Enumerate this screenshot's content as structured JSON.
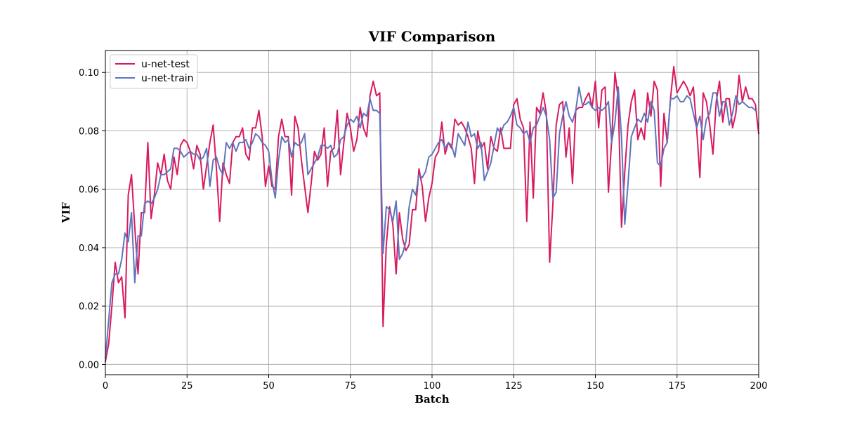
{
  "chart_data": {
    "type": "line",
    "title": "VIF Comparison",
    "xlabel": "Batch",
    "ylabel": "VIF",
    "xlim": [
      0,
      200
    ],
    "ylim": [
      -0.0035,
      0.1075
    ],
    "xticks": [
      0,
      25,
      50,
      75,
      100,
      125,
      150,
      175,
      200
    ],
    "yticks": [
      0.0,
      0.02,
      0.04,
      0.06,
      0.08,
      0.1
    ],
    "ytick_labels": [
      "0.00",
      "0.02",
      "0.04",
      "0.06",
      "0.08",
      "0.10"
    ],
    "grid": true,
    "legend_position": "top-left",
    "series": [
      {
        "name": "u-net-test",
        "color": "#d81b60",
        "values": [
          0.001,
          0.007,
          0.02,
          0.035,
          0.028,
          0.03,
          0.016,
          0.058,
          0.065,
          0.047,
          0.031,
          0.052,
          0.052,
          0.076,
          0.05,
          0.058,
          0.069,
          0.065,
          0.072,
          0.063,
          0.06,
          0.071,
          0.065,
          0.075,
          0.077,
          0.076,
          0.073,
          0.067,
          0.075,
          0.072,
          0.06,
          0.068,
          0.076,
          0.082,
          0.067,
          0.049,
          0.069,
          0.065,
          0.062,
          0.076,
          0.078,
          0.078,
          0.081,
          0.072,
          0.07,
          0.081,
          0.081,
          0.087,
          0.078,
          0.061,
          0.068,
          0.061,
          0.06,
          0.078,
          0.084,
          0.078,
          0.078,
          0.058,
          0.085,
          0.081,
          0.07,
          0.061,
          0.052,
          0.062,
          0.073,
          0.07,
          0.072,
          0.081,
          0.061,
          0.073,
          0.074,
          0.087,
          0.065,
          0.076,
          0.086,
          0.081,
          0.073,
          0.077,
          0.088,
          0.081,
          0.078,
          0.092,
          0.097,
          0.092,
          0.093,
          0.013,
          0.041,
          0.054,
          0.048,
          0.031,
          0.052,
          0.043,
          0.039,
          0.041,
          0.053,
          0.053,
          0.067,
          0.061,
          0.049,
          0.057,
          0.062,
          0.071,
          0.073,
          0.083,
          0.072,
          0.076,
          0.074,
          0.084,
          0.082,
          0.083,
          0.081,
          0.078,
          0.074,
          0.062,
          0.08,
          0.074,
          0.076,
          0.067,
          0.078,
          0.074,
          0.073,
          0.081,
          0.074,
          0.074,
          0.074,
          0.089,
          0.091,
          0.084,
          0.081,
          0.049,
          0.083,
          0.057,
          0.088,
          0.086,
          0.093,
          0.086,
          0.035,
          0.055,
          0.082,
          0.089,
          0.09,
          0.071,
          0.081,
          0.062,
          0.087,
          0.088,
          0.088,
          0.091,
          0.093,
          0.088,
          0.097,
          0.081,
          0.094,
          0.095,
          0.059,
          0.077,
          0.1,
          0.091,
          0.047,
          0.066,
          0.082,
          0.09,
          0.094,
          0.077,
          0.081,
          0.077,
          0.093,
          0.085,
          0.097,
          0.094,
          0.061,
          0.086,
          0.076,
          0.091,
          0.102,
          0.093,
          0.095,
          0.097,
          0.095,
          0.092,
          0.095,
          0.081,
          0.064,
          0.093,
          0.09,
          0.082,
          0.072,
          0.09,
          0.097,
          0.083,
          0.091,
          0.091,
          0.081,
          0.086,
          0.099,
          0.09,
          0.095,
          0.091,
          0.091,
          0.089,
          0.079
        ]
      },
      {
        "name": "u-net-train",
        "color": "#5f75bd",
        "values": [
          0.002,
          0.015,
          0.028,
          0.031,
          0.031,
          0.036,
          0.045,
          0.042,
          0.052,
          0.028,
          0.044,
          0.044,
          0.055,
          0.056,
          0.055,
          0.057,
          0.06,
          0.065,
          0.065,
          0.066,
          0.067,
          0.074,
          0.074,
          0.073,
          0.071,
          0.072,
          0.073,
          0.072,
          0.072,
          0.07,
          0.071,
          0.074,
          0.061,
          0.07,
          0.071,
          0.067,
          0.065,
          0.076,
          0.074,
          0.076,
          0.073,
          0.076,
          0.076,
          0.077,
          0.074,
          0.076,
          0.079,
          0.078,
          0.076,
          0.075,
          0.073,
          0.063,
          0.057,
          0.07,
          0.078,
          0.076,
          0.077,
          0.071,
          0.076,
          0.075,
          0.076,
          0.079,
          0.065,
          0.067,
          0.069,
          0.071,
          0.075,
          0.075,
          0.074,
          0.075,
          0.071,
          0.072,
          0.077,
          0.078,
          0.082,
          0.084,
          0.083,
          0.085,
          0.081,
          0.086,
          0.085,
          0.091,
          0.087,
          0.087,
          0.086,
          0.038,
          0.054,
          0.053,
          0.049,
          0.056,
          0.036,
          0.038,
          0.042,
          0.054,
          0.06,
          0.058,
          0.065,
          0.064,
          0.066,
          0.071,
          0.072,
          0.074,
          0.076,
          0.077,
          0.074,
          0.076,
          0.075,
          0.071,
          0.079,
          0.077,
          0.075,
          0.083,
          0.078,
          0.079,
          0.074,
          0.076,
          0.063,
          0.066,
          0.069,
          0.075,
          0.081,
          0.079,
          0.082,
          0.083,
          0.085,
          0.088,
          0.082,
          0.081,
          0.079,
          0.08,
          0.076,
          0.081,
          0.082,
          0.085,
          0.088,
          0.085,
          0.077,
          0.057,
          0.059,
          0.079,
          0.085,
          0.09,
          0.085,
          0.083,
          0.087,
          0.095,
          0.089,
          0.089,
          0.09,
          0.088,
          0.087,
          0.088,
          0.087,
          0.088,
          0.09,
          0.076,
          0.083,
          0.095,
          0.078,
          0.048,
          0.062,
          0.078,
          0.081,
          0.084,
          0.083,
          0.086,
          0.083,
          0.09,
          0.087,
          0.069,
          0.068,
          0.074,
          0.076,
          0.091,
          0.091,
          0.092,
          0.09,
          0.09,
          0.092,
          0.091,
          0.086,
          0.081,
          0.085,
          0.077,
          0.084,
          0.086,
          0.093,
          0.093,
          0.085,
          0.09,
          0.09,
          0.082,
          0.086,
          0.092,
          0.089,
          0.09,
          0.089,
          0.088,
          0.088,
          0.087
        ]
      }
    ]
  }
}
